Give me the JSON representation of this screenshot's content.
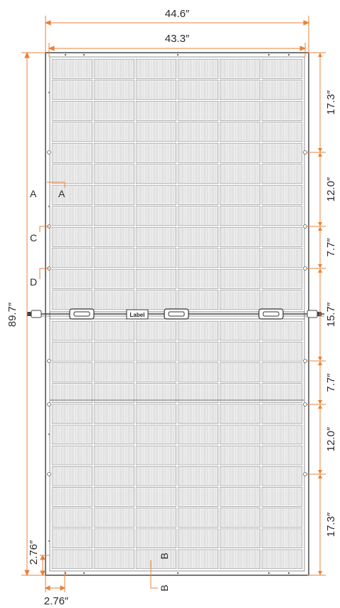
{
  "colors": {
    "dimension_line": "#E8823A",
    "frame": "#555555",
    "cell_line": "#8a8a8a",
    "text": "#2b2b2b"
  },
  "dimensions": {
    "overall_width": "44.6″",
    "inner_width": "43.3″",
    "overall_height": "89.7″",
    "right_segments": [
      "17.3″",
      "12.0″",
      "7.7″",
      "15.7″",
      "7.7″",
      "12.0″",
      "17.3″"
    ],
    "corner_vertical": "2.76″",
    "corner_horizontal": "2.76″"
  },
  "references": {
    "a_left": "A",
    "a_right": "A",
    "c": "C",
    "d": "D",
    "b_lower": "B",
    "b_upper": "B"
  },
  "panel": {
    "label_text": "Label"
  }
}
